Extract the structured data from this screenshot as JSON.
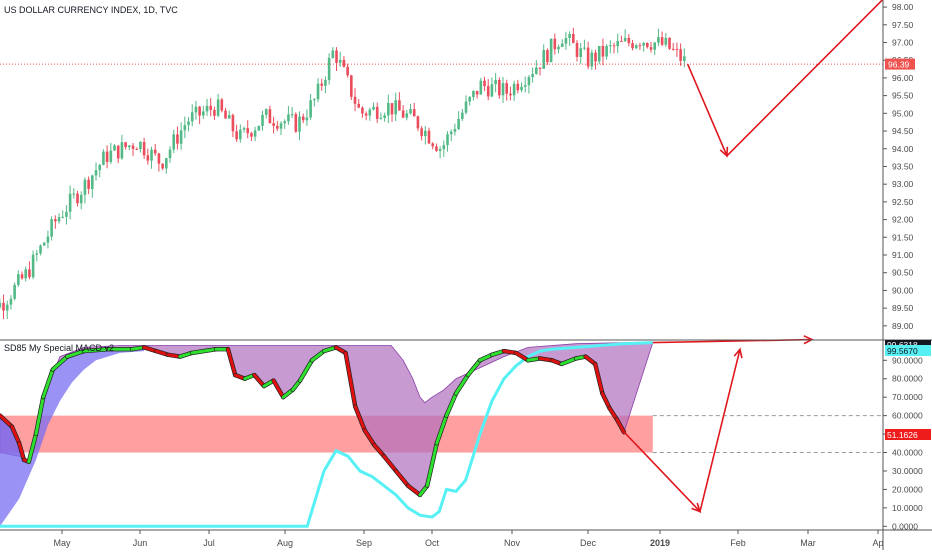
{
  "colors": {
    "up": "#53b987",
    "down": "#eb4d5c",
    "ink": "#131722",
    "axis_text": "#4a4a4a",
    "price_tag": "#ef5350",
    "cyan": "#56f0f5",
    "macd_green": "#2ee02e",
    "macd_red": "#e01010",
    "purple_fill": "#b06fbf",
    "blue_fill": "#7a6ef2",
    "band_fill": "#ff7f7f",
    "arrow": "#e0181e"
  },
  "chart_data": [
    {
      "type": "candlestick",
      "title": "US DOLLAR CURRENCY INDEX, 1D, TVC",
      "ylim": [
        88.6,
        98.2
      ],
      "y_ticks": [
        "98.00",
        "97.50",
        "97.00",
        "96.50",
        "96.00",
        "95.50",
        "95.00",
        "94.50",
        "94.00",
        "93.50",
        "93.00",
        "92.50",
        "92.00",
        "91.50",
        "91.00",
        "90.50",
        "90.00",
        "89.50",
        "89.00"
      ],
      "last_price": "96.39",
      "close_path": [
        [
          "Apr 1",
          89.9
        ],
        [
          "Apr 10",
          89.6
        ],
        [
          "Apr 20",
          90.5
        ],
        [
          "May 1",
          92.0
        ],
        [
          "May 10",
          92.8
        ],
        [
          "May 20",
          93.8
        ],
        [
          "Jun 1",
          94.2
        ],
        [
          "Jun 10",
          93.6
        ],
        [
          "Jun 20",
          94.8
        ],
        [
          "Jul 1",
          95.2
        ],
        [
          "Jul 10",
          94.3
        ],
        [
          "Jul 20",
          94.9
        ],
        [
          "Aug 1",
          94.7
        ],
        [
          "Aug 8",
          95.4
        ],
        [
          "Aug 15",
          96.8
        ],
        [
          "Aug 25",
          95.0
        ],
        [
          "Sep 5",
          95.2
        ],
        [
          "Sep 15",
          94.8
        ],
        [
          "Sep 25",
          94.0
        ],
        [
          "Oct 1",
          94.8
        ],
        [
          "Oct 10",
          95.8
        ],
        [
          "Oct 20",
          95.6
        ],
        [
          "Nov 1",
          96.4
        ],
        [
          "Nov 10",
          97.2
        ],
        [
          "Nov 20",
          96.5
        ],
        [
          "Dec 1",
          96.9
        ],
        [
          "Dec 10",
          97.1
        ],
        [
          "Dec 20",
          96.9
        ],
        [
          "Dec 28",
          96.39
        ]
      ],
      "projection": [
        [
          "Dec 28",
          96.39
        ],
        [
          "Jan 12",
          93.8
        ],
        [
          "Mar 15",
          98.4
        ]
      ]
    },
    {
      "type": "line",
      "title": "SD85 My Special MACD v2",
      "ylim": [
        -2,
        101
      ],
      "y_ticks": [
        "90.0000",
        "80.0000",
        "70.0000",
        "60.0000",
        "50.0000",
        "40.0000",
        "30.0000",
        "20.0000",
        "10.0000",
        "0.0000"
      ],
      "tags": [
        "99.6318",
        "99.5670",
        "51.1626"
      ],
      "band": [
        40,
        60
      ],
      "dashed_levels": [
        40,
        60
      ],
      "series": [
        {
          "values": [
            [
              0,
              0
            ],
            [
              10,
              0
            ],
            [
              20,
              0
            ],
            [
              30,
              0
            ],
            [
              40,
              0
            ],
            [
              50,
              0
            ],
            [
              60,
              0
            ],
            [
              70,
              0
            ],
            [
              80,
              0
            ],
            [
              90,
              0
            ],
            [
              100,
              0
            ],
            [
              110,
              0
            ],
            [
              120,
              0
            ],
            [
              128,
              0
            ],
            [
              135,
              30
            ],
            [
              140,
              41
            ],
            [
              145,
              38
            ],
            [
              150,
              30
            ],
            [
              155,
              27
            ],
            [
              160,
              22
            ],
            [
              165,
              17
            ],
            [
              170,
              10
            ],
            [
              175,
              6
            ],
            [
              180,
              5
            ],
            [
              183,
              8
            ],
            [
              186,
              20
            ],
            [
              190,
              19
            ],
            [
              194,
              25
            ],
            [
              200,
              50
            ],
            [
              205,
              68
            ],
            [
              210,
              80
            ],
            [
              215,
              87
            ],
            [
              220,
              92
            ],
            [
              225,
              95
            ],
            [
              230,
              96
            ],
            [
              240,
              97
            ],
            [
              250,
              98
            ],
            [
              260,
              99
            ],
            [
              272,
              99.6
            ]
          ]
        },
        {
          "values": [
            [
              0,
              60
            ],
            [
              5,
              54
            ],
            [
              8,
              45
            ],
            [
              10,
              36
            ],
            [
              12,
              35
            ],
            [
              15,
              50
            ],
            [
              18,
              70
            ],
            [
              22,
              85
            ],
            [
              28,
              92
            ],
            [
              35,
              95
            ],
            [
              45,
              96
            ],
            [
              55,
              96
            ],
            [
              60,
              97
            ],
            [
              65,
              95
            ],
            [
              70,
              93
            ],
            [
              75,
              92
            ],
            [
              80,
              94
            ],
            [
              90,
              96
            ],
            [
              95,
              96
            ],
            [
              98,
              82
            ],
            [
              102,
              80
            ],
            [
              106,
              82
            ],
            [
              110,
              76
            ],
            [
              114,
              79
            ],
            [
              118,
              70
            ],
            [
              122,
              74
            ],
            [
              125,
              79
            ],
            [
              130,
              90
            ],
            [
              135,
              95
            ],
            [
              140,
              97
            ],
            [
              144,
              94
            ],
            [
              148,
              65
            ],
            [
              152,
              52
            ],
            [
              156,
              44
            ],
            [
              160,
              38
            ],
            [
              165,
              30
            ],
            [
              170,
              22
            ],
            [
              175,
              17
            ],
            [
              178,
              22
            ],
            [
              182,
              45
            ],
            [
              186,
              60
            ],
            [
              190,
              72
            ],
            [
              195,
              82
            ],
            [
              200,
              90
            ],
            [
              205,
              93
            ],
            [
              210,
              95
            ],
            [
              215,
              94
            ],
            [
              220,
              90
            ],
            [
              225,
              91
            ],
            [
              230,
              90
            ],
            [
              234,
              88
            ],
            [
              240,
              91
            ],
            [
              244,
              92
            ],
            [
              248,
              88
            ],
            [
              251,
              72
            ],
            [
              254,
              64
            ],
            [
              257,
              58
            ],
            [
              260,
              51
            ]
          ]
        },
        {
          "values": [
            [
              0,
              40
            ],
            [
              8,
              38
            ],
            [
              12,
              35
            ],
            [
              18,
              70
            ],
            [
              25,
              92
            ],
            [
              35,
              97
            ],
            [
              50,
              98
            ],
            [
              70,
              98
            ],
            [
              90,
              98
            ],
            [
              120,
              98
            ],
            [
              140,
              98
            ],
            [
              150,
              98
            ],
            [
              160,
              98
            ],
            [
              163,
              98
            ],
            [
              168,
              90
            ],
            [
              172,
              80
            ],
            [
              175,
              70
            ],
            [
              177,
              67
            ],
            [
              180,
              70
            ],
            [
              185,
              74
            ],
            [
              190,
              80
            ],
            [
              200,
              86
            ],
            [
              210,
              92
            ],
            [
              220,
              97
            ],
            [
              240,
              99
            ],
            [
              260,
              99.6
            ],
            [
              272,
              99.6
            ]
          ]
        },
        {
          "values": [
            [
              0,
              0
            ],
            [
              8,
              15
            ],
            [
              15,
              36
            ],
            [
              20,
              55
            ],
            [
              25,
              68
            ],
            [
              30,
              78
            ],
            [
              35,
              85
            ],
            [
              40,
              90
            ],
            [
              50,
              94
            ],
            [
              60,
              95
            ]
          ]
        }
      ],
      "projection": [
        [
          "Dec 28",
          51.1626
        ],
        [
          "Jan 18",
          8
        ],
        [
          "Feb 1",
          96
        ]
      ]
    }
  ],
  "x_axis": {
    "labels": [
      "May",
      "Jun",
      "Jul",
      "Aug",
      "Sep",
      "Oct",
      "Nov",
      "Dec",
      "2019",
      "Feb",
      "Mar",
      "Ap"
    ]
  }
}
